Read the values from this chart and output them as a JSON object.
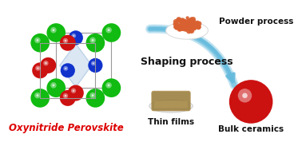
{
  "bg_color": "#ffffff",
  "title_text": "Oxynitride Perovskite",
  "title_color": "#dd0000",
  "title_fontsize": 8.5,
  "title_fontstyle": "bold",
  "shaping_text": "Shaping process",
  "shaping_fontsize": 9,
  "shaping_fontweight": "bold",
  "powder_text": "Powder process",
  "powder_fontsize": 7.5,
  "powder_fontweight": "bold",
  "thinfilm_text": "Thin films",
  "thinfilm_fontsize": 7.5,
  "thinfilm_fontweight": "bold",
  "bulk_text": "Bulk ceramics",
  "bulk_fontsize": 7.5,
  "bulk_fontweight": "bold",
  "green_color": "#11bb11",
  "blue_color": "#1133cc",
  "red_color": "#cc1111",
  "arrow_color": "#66bbdd",
  "powder_fill": "#d96030",
  "bulk_fill": "#cc1111",
  "thinfilm_fill": "#9b8040",
  "cube_line_color": "#999999",
  "octahedron_color": "#99bbdd"
}
